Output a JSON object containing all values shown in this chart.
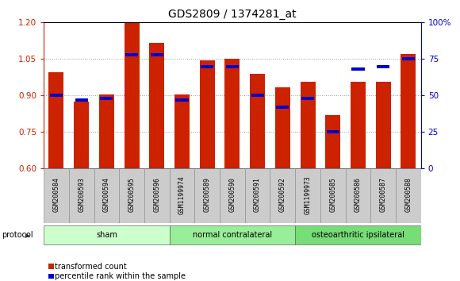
{
  "title": "GDS2809 / 1374281_at",
  "categories": [
    "GSM200584",
    "GSM200593",
    "GSM200594",
    "GSM200595",
    "GSM200596",
    "GSM1199974",
    "GSM200589",
    "GSM200590",
    "GSM200591",
    "GSM200592",
    "GSM1199973",
    "GSM200585",
    "GSM200586",
    "GSM200587",
    "GSM200588"
  ],
  "red_values": [
    0.995,
    0.875,
    0.905,
    1.2,
    1.115,
    0.905,
    1.045,
    1.05,
    0.99,
    0.935,
    0.955,
    0.82,
    0.955,
    0.955,
    1.07
  ],
  "blue_values_pct": [
    50,
    47,
    48,
    78,
    78,
    47,
    70,
    70,
    50,
    42,
    48,
    25,
    68,
    70,
    75
  ],
  "ylim_left": [
    0.6,
    1.2
  ],
  "ylim_right": [
    0,
    100
  ],
  "yticks_left": [
    0.6,
    0.75,
    0.9,
    1.05,
    1.2
  ],
  "yticks_right": [
    0,
    25,
    50,
    75,
    100
  ],
  "left_tick_color": "#cc2200",
  "right_tick_color": "#0000cc",
  "bar_color": "#cc2200",
  "blue_color": "#0000cc",
  "bg_figure": "#ffffff",
  "tick_bg_color": "#cccccc",
  "protocol_groups": [
    {
      "label": "sham",
      "start": 0,
      "end": 4,
      "color": "#ccffcc"
    },
    {
      "label": "normal contralateral",
      "start": 5,
      "end": 9,
      "color": "#99ee99"
    },
    {
      "label": "osteoarthritic ipsilateral",
      "start": 10,
      "end": 14,
      "color": "#77dd77"
    }
  ],
  "legend_items": [
    {
      "label": "transformed count",
      "color": "#cc2200"
    },
    {
      "label": "percentile rank within the sample",
      "color": "#0000cc"
    }
  ],
  "protocol_label": "protocol",
  "bar_width": 0.6
}
